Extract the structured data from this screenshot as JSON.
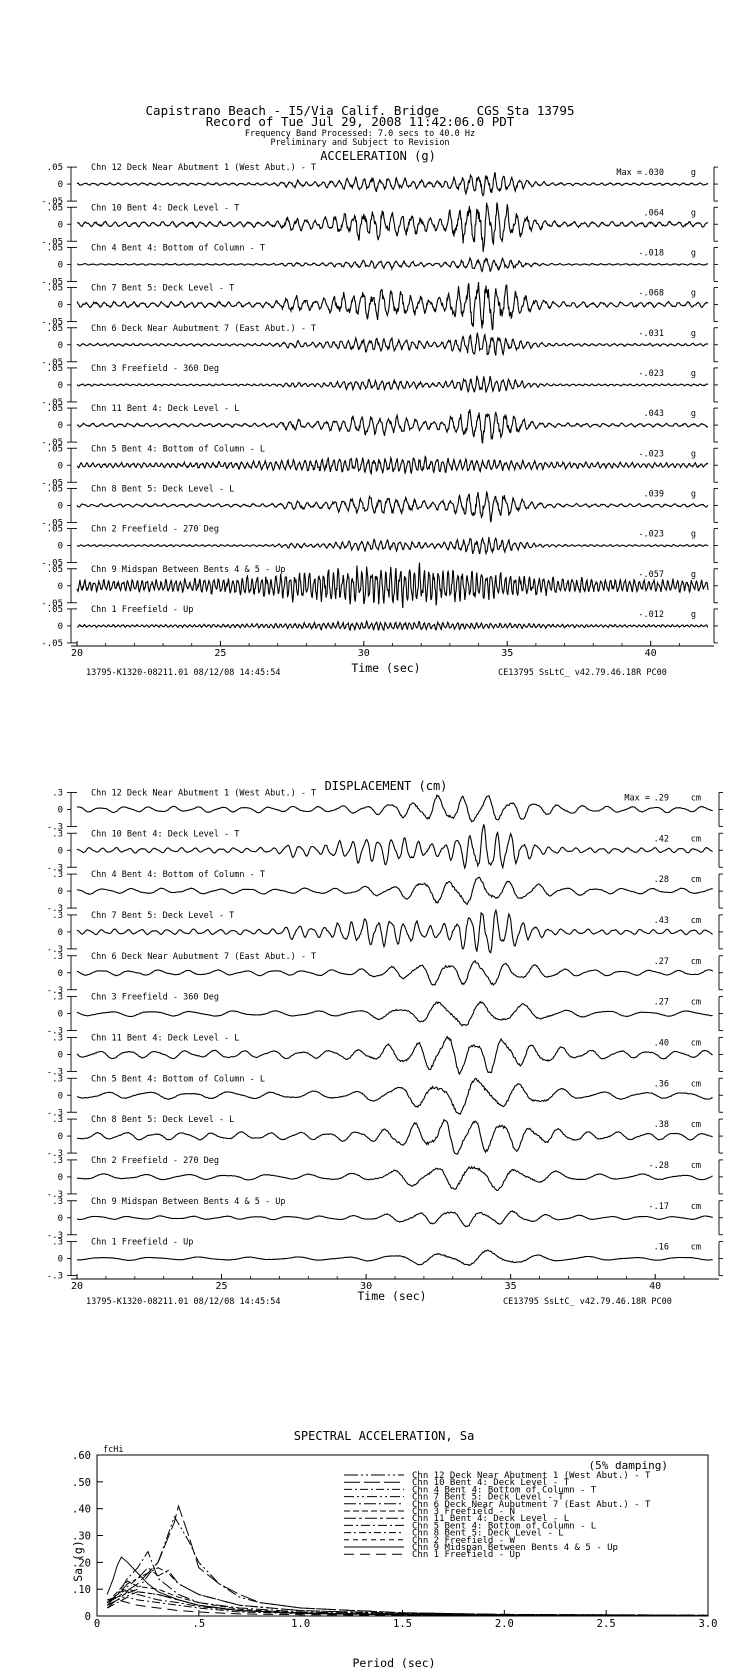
{
  "header": {
    "line1": "Capistrano Beach - I5/Via Calif. Bridge     CGS Sta 13795",
    "line2": "Record of Tue Jul 29, 2008 11:42:06.0 PDT",
    "line3": "Frequency Band Processed: 7.0 secs to 40.0 Hz",
    "line4": "Preliminary and Subject to Revision"
  },
  "footer": {
    "left": "13795-K1320-08211.01 08/12/08 14:45:54",
    "right": "CE13795  SsLtC_  v42.79.46.18R PC00"
  },
  "chart_data": [
    {
      "type": "line",
      "title": "ACCELERATION (g)",
      "xlabel": "Time (sec)",
      "xlim": [
        20,
        42
      ],
      "x_ticks": [
        "20",
        "25",
        "30",
        "35",
        "40"
      ],
      "y_ticks": [
        ".05",
        "0",
        "-.05"
      ],
      "max_label": "Max =",
      "unit": "g",
      "series": [
        {
          "name": "Chn 12  Deck Near Abutment 1 (West Abut.) - T",
          "peak": ".030",
          "peak_value": 0.03
        },
        {
          "name": "Chn 10  Bent 4: Deck Level - T",
          "peak": ".064",
          "peak_value": 0.064
        },
        {
          "name": "Chn 4  Bent 4: Bottom of Column - T",
          "peak": "-.018",
          "peak_value": -0.018
        },
        {
          "name": "Chn 7  Bent 5: Deck Level - T",
          "peak": "-.068",
          "peak_value": -0.068
        },
        {
          "name": "Chn 6  Deck Near Aubutment 7 (East Abut.) - T",
          "peak": "-.031",
          "peak_value": -0.031
        },
        {
          "name": "Chn 3  Freefield - 360 Deg",
          "peak": "-.023",
          "peak_value": -0.023
        },
        {
          "name": "Chn 11  Bent 4: Deck Level - L",
          "peak": ".043",
          "peak_value": 0.043
        },
        {
          "name": "Chn 5  Bent 4: Bottom of Column - L",
          "peak": "-.023",
          "peak_value": -0.023
        },
        {
          "name": "Chn 8  Bent 5: Deck Level - L",
          "peak": ".039",
          "peak_value": 0.039
        },
        {
          "name": "Chn 2  Freefield - 270 Deg",
          "peak": "-.023",
          "peak_value": -0.023
        },
        {
          "name": "Chn 9  Midspan Between Bents 4 & 5 - Up",
          "peak": "-.057",
          "peak_value": -0.057
        },
        {
          "name": "Chn 1  Freefield - Up",
          "peak": "-.012",
          "peak_value": -0.012
        }
      ]
    },
    {
      "type": "line",
      "title": "DISPLACEMENT (cm)",
      "xlabel": "Time (sec)",
      "xlim": [
        20,
        42
      ],
      "x_ticks": [
        "20",
        "25",
        "30",
        "35",
        "40"
      ],
      "y_ticks": [
        ".3",
        "0",
        "-.3"
      ],
      "max_label": "Max =",
      "unit": "cm",
      "series": [
        {
          "name": "Chn 12  Deck Near Abutment 1 (West Abut.) - T",
          "peak": ".29",
          "peak_value": 0.29
        },
        {
          "name": "Chn 10  Bent 4: Deck Level - T",
          "peak": ".42",
          "peak_value": 0.42
        },
        {
          "name": "Chn 4  Bent 4: Bottom of Column - T",
          "peak": ".28",
          "peak_value": 0.28
        },
        {
          "name": "Chn 7  Bent 5: Deck Level - T",
          "peak": ".43",
          "peak_value": 0.43
        },
        {
          "name": "Chn 6  Deck Near Aubutment 7 (East Abut.) - T",
          "peak": ".27",
          "peak_value": 0.27
        },
        {
          "name": "Chn 3  Freefield - 360 Deg",
          "peak": ".27",
          "peak_value": 0.27
        },
        {
          "name": "Chn 11  Bent 4: Deck Level - L",
          "peak": ".40",
          "peak_value": 0.4
        },
        {
          "name": "Chn 5  Bent 4: Bottom of Column - L",
          "peak": ".36",
          "peak_value": 0.36
        },
        {
          "name": "Chn 8  Bent 5: Deck Level - L",
          "peak": ".38",
          "peak_value": 0.38
        },
        {
          "name": "Chn 2  Freefield - 270 Deg",
          "peak": "-.28",
          "peak_value": -0.28
        },
        {
          "name": "Chn 9  Midspan Between Bents 4 & 5 - Up",
          "peak": "-.17",
          "peak_value": -0.17
        },
        {
          "name": "Chn 1  Freefield - Up",
          "peak": ".16",
          "peak_value": 0.16
        }
      ]
    },
    {
      "type": "line",
      "title": "SPECTRAL ACCELERATION, Sa",
      "xlabel": "Period (sec)",
      "ylabel": "Sa (g)",
      "xlim": [
        0,
        3.0
      ],
      "ylim": [
        0,
        0.6
      ],
      "x_ticks": [
        "0",
        ".5",
        "1.0",
        "1.5",
        "2.0",
        "2.5",
        "3.0"
      ],
      "y_ticks": [
        "0",
        ".10",
        ".20",
        ".30",
        ".40",
        ".50",
        ".60"
      ],
      "annotation": "fcHi",
      "damping": "(5% damping)",
      "legend_position": "top-right",
      "series": [
        {
          "name": "Chn 12  Deck Near Abutment 1 (West Abut.) - T",
          "dash": "14,3,2,3,2,3",
          "x": [
            0.05,
            0.1,
            0.2,
            0.3,
            0.4,
            0.5,
            0.7,
            1.0,
            1.5,
            2.0,
            3.0
          ],
          "y": [
            0.04,
            0.06,
            0.09,
            0.08,
            0.06,
            0.04,
            0.02,
            0.012,
            0.006,
            0.004,
            0.002
          ]
        },
        {
          "name": "Chn 10  Bent 4: Deck Level - T",
          "dash": "16,4",
          "x": [
            0.05,
            0.1,
            0.2,
            0.3,
            0.38,
            0.4,
            0.45,
            0.5,
            0.6,
            0.7,
            0.8,
            1.0,
            1.5,
            2.0,
            3.0
          ],
          "y": [
            0.06,
            0.07,
            0.12,
            0.2,
            0.35,
            0.41,
            0.3,
            0.18,
            0.12,
            0.08,
            0.05,
            0.03,
            0.012,
            0.006,
            0.003
          ]
        },
        {
          "name": "Chn 4  Bent 4: Bottom of Column - T",
          "dash": "8,3,2,3",
          "x": [
            0.05,
            0.1,
            0.15,
            0.2,
            0.3,
            0.4,
            0.5,
            0.7,
            1.0,
            1.5,
            2.0,
            3.0
          ],
          "y": [
            0.03,
            0.05,
            0.07,
            0.06,
            0.05,
            0.04,
            0.03,
            0.015,
            0.009,
            0.004,
            0.003,
            0.001
          ]
        },
        {
          "name": "Chn 7  Bent 5: Deck Level - T",
          "dash": "10,3,2,3,2,3",
          "x": [
            0.05,
            0.1,
            0.2,
            0.3,
            0.38,
            0.45,
            0.5,
            0.6,
            0.7,
            0.8,
            1.0,
            1.5,
            2.0,
            3.0
          ],
          "y": [
            0.05,
            0.07,
            0.1,
            0.2,
            0.37,
            0.28,
            0.2,
            0.12,
            0.07,
            0.05,
            0.03,
            0.012,
            0.006,
            0.003
          ]
        },
        {
          "name": "Chn 6  Deck Near Aubutment 7 (East Abut.) - T",
          "dash": "12,3,2,3",
          "x": [
            0.05,
            0.1,
            0.15,
            0.2,
            0.25,
            0.3,
            0.4,
            0.5,
            0.7,
            1.0,
            1.5,
            2.0,
            3.0
          ],
          "y": [
            0.05,
            0.08,
            0.14,
            0.18,
            0.24,
            0.14,
            0.08,
            0.05,
            0.03,
            0.015,
            0.008,
            0.004,
            0.002
          ]
        },
        {
          "name": "Chn 3  Freefield - N",
          "dash": "6,3",
          "x": [
            0.05,
            0.1,
            0.15,
            0.2,
            0.3,
            0.4,
            0.5,
            0.7,
            1.0,
            1.5,
            2.0,
            3.0
          ],
          "y": [
            0.05,
            0.09,
            0.13,
            0.11,
            0.1,
            0.07,
            0.05,
            0.025,
            0.012,
            0.006,
            0.003,
            0.001
          ]
        },
        {
          "name": "Chn 11  Bent 4: Deck Level - L",
          "dash": "12,3,3,3",
          "x": [
            0.05,
            0.1,
            0.15,
            0.2,
            0.25,
            0.3,
            0.35,
            0.4,
            0.5,
            0.7,
            1.0,
            1.5,
            2.0,
            3.0
          ],
          "y": [
            0.04,
            0.08,
            0.12,
            0.14,
            0.18,
            0.15,
            0.17,
            0.12,
            0.08,
            0.04,
            0.02,
            0.01,
            0.005,
            0.002
          ]
        },
        {
          "name": "Chn 5  Bent 4: Bottom of Column - L",
          "dash": "9,3,2,3",
          "x": [
            0.05,
            0.1,
            0.15,
            0.2,
            0.3,
            0.4,
            0.5,
            0.7,
            1.0,
            1.5,
            2.0,
            3.0
          ],
          "y": [
            0.04,
            0.06,
            0.09,
            0.08,
            0.06,
            0.05,
            0.035,
            0.02,
            0.01,
            0.005,
            0.003,
            0.001
          ]
        },
        {
          "name": "Chn 8  Bent 5: Deck Level - L",
          "dash": "7,3,2,3",
          "x": [
            0.05,
            0.1,
            0.15,
            0.2,
            0.25,
            0.3,
            0.35,
            0.4,
            0.5,
            0.7,
            1.0,
            1.5,
            2.0,
            3.0
          ],
          "y": [
            0.05,
            0.08,
            0.11,
            0.14,
            0.16,
            0.18,
            0.16,
            0.12,
            0.08,
            0.04,
            0.02,
            0.009,
            0.005,
            0.002
          ]
        },
        {
          "name": "Chn 2  Freefield - W",
          "dash": "5,4",
          "x": [
            0.05,
            0.1,
            0.15,
            0.2,
            0.3,
            0.4,
            0.5,
            0.7,
            1.0,
            1.5,
            2.0,
            3.0
          ],
          "y": [
            0.05,
            0.08,
            0.1,
            0.09,
            0.08,
            0.06,
            0.04,
            0.02,
            0.01,
            0.005,
            0.003,
            0.001
          ]
        },
        {
          "name": "Chn 9  Midspan Between Bents 4 & 5 - Up",
          "dash": "",
          "x": [
            0.05,
            0.08,
            0.1,
            0.12,
            0.15,
            0.2,
            0.25,
            0.3,
            0.4,
            0.5,
            0.7,
            1.0,
            1.5,
            2.0,
            3.0
          ],
          "y": [
            0.08,
            0.14,
            0.19,
            0.22,
            0.2,
            0.16,
            0.12,
            0.09,
            0.06,
            0.04,
            0.02,
            0.01,
            0.005,
            0.003,
            0.001
          ]
        },
        {
          "name": "Chn 1  Freefield - Up",
          "dash": "10,6",
          "x": [
            0.05,
            0.08,
            0.1,
            0.15,
            0.2,
            0.3,
            0.4,
            0.5,
            0.7,
            1.0,
            1.5,
            2.0,
            3.0
          ],
          "y": [
            0.03,
            0.05,
            0.06,
            0.05,
            0.04,
            0.03,
            0.02,
            0.015,
            0.008,
            0.005,
            0.003,
            0.002,
            0.001
          ]
        }
      ]
    }
  ]
}
